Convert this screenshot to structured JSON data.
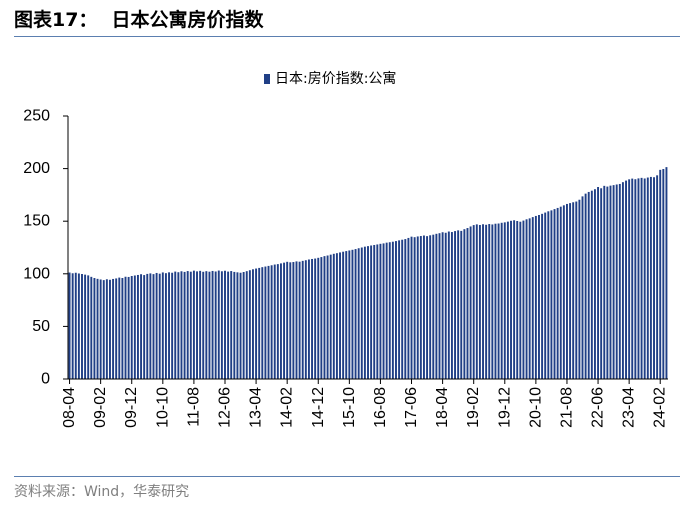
{
  "header": {
    "figure_label": "图表17："
  },
  "source": "资料来源：Wind，华泰研究",
  "colors": {
    "bar": "#203f86",
    "rule": "#5b7fb0",
    "source_text": "#7f7f7f",
    "axis": "#000000"
  },
  "chart_data": {
    "type": "bar",
    "title": "日本公寓房价指数",
    "legend_position": "top",
    "grid": false,
    "ylim": [
      0,
      250
    ],
    "yticks": [
      0,
      50,
      100,
      150,
      200,
      250
    ],
    "xticks": [
      "08-04",
      "09-02",
      "09-12",
      "10-10",
      "11-08",
      "12-06",
      "13-04",
      "14-02",
      "14-12",
      "15-10",
      "16-08",
      "17-06",
      "18-04",
      "19-02",
      "19-12",
      "20-10",
      "21-08",
      "22-06",
      "23-04",
      "24-02"
    ],
    "categories": [
      "08-04",
      "08-05",
      "08-06",
      "08-07",
      "08-08",
      "08-09",
      "08-10",
      "08-11",
      "08-12",
      "09-01",
      "09-02",
      "09-03",
      "09-04",
      "09-05",
      "09-06",
      "09-07",
      "09-08",
      "09-09",
      "09-10",
      "09-11",
      "09-12",
      "10-01",
      "10-02",
      "10-03",
      "10-04",
      "10-05",
      "10-06",
      "10-07",
      "10-08",
      "10-09",
      "10-10",
      "10-11",
      "10-12",
      "11-01",
      "11-02",
      "11-03",
      "11-04",
      "11-05",
      "11-06",
      "11-07",
      "11-08",
      "11-09",
      "11-10",
      "11-11",
      "11-12",
      "12-01",
      "12-02",
      "12-03",
      "12-04",
      "12-05",
      "12-06",
      "12-07",
      "12-08",
      "12-09",
      "12-10",
      "12-11",
      "12-12",
      "13-01",
      "13-02",
      "13-03",
      "13-04",
      "13-05",
      "13-06",
      "13-07",
      "13-08",
      "13-09",
      "13-10",
      "13-11",
      "13-12",
      "14-01",
      "14-02",
      "14-03",
      "14-04",
      "14-05",
      "14-06",
      "14-07",
      "14-08",
      "14-09",
      "14-10",
      "14-11",
      "14-12",
      "15-01",
      "15-02",
      "15-03",
      "15-04",
      "15-05",
      "15-06",
      "15-07",
      "15-08",
      "15-09",
      "15-10",
      "15-11",
      "15-12",
      "16-01",
      "16-02",
      "16-03",
      "16-04",
      "16-05",
      "16-06",
      "16-07",
      "16-08",
      "16-09",
      "16-10",
      "16-11",
      "16-12",
      "17-01",
      "17-02",
      "17-03",
      "17-04",
      "17-05",
      "17-06",
      "17-07",
      "17-08",
      "17-09",
      "17-10",
      "17-11",
      "17-12",
      "18-01",
      "18-02",
      "18-03",
      "18-04",
      "18-05",
      "18-06",
      "18-07",
      "18-08",
      "18-09",
      "18-10",
      "18-11",
      "18-12",
      "19-01",
      "19-02",
      "19-03",
      "19-04",
      "19-05",
      "19-06",
      "19-07",
      "19-08",
      "19-09",
      "19-10",
      "19-11",
      "19-12",
      "20-01",
      "20-02",
      "20-03",
      "20-04",
      "20-05",
      "20-06",
      "20-07",
      "20-08",
      "20-09",
      "20-10",
      "20-11",
      "20-12",
      "21-01",
      "21-02",
      "21-03",
      "21-04",
      "21-05",
      "21-06",
      "21-07",
      "21-08",
      "21-09",
      "21-10",
      "21-11",
      "21-12",
      "22-01",
      "22-02",
      "22-03",
      "22-04",
      "22-05",
      "22-06",
      "22-07",
      "22-08",
      "22-09",
      "22-10",
      "22-11",
      "22-12",
      "23-01",
      "23-02",
      "23-03",
      "23-04",
      "23-05",
      "23-06",
      "23-07",
      "23-08",
      "23-09",
      "23-10",
      "23-11",
      "23-12",
      "24-01",
      "24-02",
      "24-03",
      "24-04"
    ],
    "series": [
      {
        "name": "日本:房价指数:公寓",
        "values": [
          101.2,
          100.5,
          101.0,
          100.3,
          99.8,
          99.2,
          98.5,
          97.1,
          96.0,
          95.2,
          94.6,
          94.0,
          94.8,
          94.3,
          95.1,
          95.6,
          96.4,
          96.0,
          97.2,
          97.0,
          97.9,
          98.4,
          98.9,
          99.6,
          98.8,
          99.9,
          100.4,
          99.7,
          100.8,
          100.1,
          101.3,
          100.6,
          101.4,
          101.0,
          102.1,
          101.5,
          102.4,
          101.8,
          102.6,
          102.0,
          103.0,
          102.3,
          102.8,
          101.9,
          102.5,
          102.0,
          102.7,
          102.2,
          103.1,
          102.4,
          102.9,
          102.1,
          102.6,
          101.8,
          101.4,
          101.0,
          101.7,
          102.5,
          103.4,
          104.3,
          105.0,
          105.6,
          106.3,
          106.9,
          107.5,
          108.1,
          108.8,
          109.2,
          109.9,
          110.6,
          111.4,
          110.9,
          111.2,
          111.8,
          111.5,
          112.3,
          112.9,
          113.6,
          114.1,
          114.5,
          115.2,
          115.9,
          116.8,
          117.4,
          118.2,
          119.0,
          119.6,
          120.3,
          121.0,
          121.6,
          122.2,
          122.8,
          123.5,
          124.3,
          125.0,
          125.8,
          126.3,
          126.9,
          127.4,
          127.9,
          128.5,
          128.9,
          129.6,
          130.0,
          130.5,
          131.1,
          131.8,
          132.4,
          133.0,
          134.1,
          135.3,
          134.8,
          135.5,
          135.9,
          136.4,
          135.8,
          136.6,
          137.2,
          138.0,
          138.6,
          139.5,
          139.0,
          140.2,
          139.7,
          140.6,
          141.3,
          140.8,
          142.4,
          143.5,
          145.0,
          146.3,
          147.0,
          146.4,
          147.1,
          146.6,
          147.3,
          146.9,
          147.6,
          147.8,
          148.5,
          148.9,
          149.6,
          150.4,
          150.9,
          150.2,
          149.5,
          150.6,
          151.8,
          152.7,
          153.9,
          155.0,
          155.9,
          157.0,
          158.2,
          159.4,
          160.3,
          161.5,
          162.6,
          163.8,
          165.1,
          166.4,
          167.2,
          168.0,
          168.7,
          170.4,
          173.6,
          176.2,
          177.8,
          179.0,
          180.4,
          182.5,
          181.3,
          183.6,
          182.9,
          183.8,
          184.3,
          184.9,
          185.4,
          187.1,
          188.6,
          189.8,
          190.5,
          189.9,
          190.7,
          191.2,
          190.6,
          191.5,
          192.1,
          191.8,
          193.6,
          198.8,
          199.6,
          201.4
        ]
      }
    ]
  }
}
